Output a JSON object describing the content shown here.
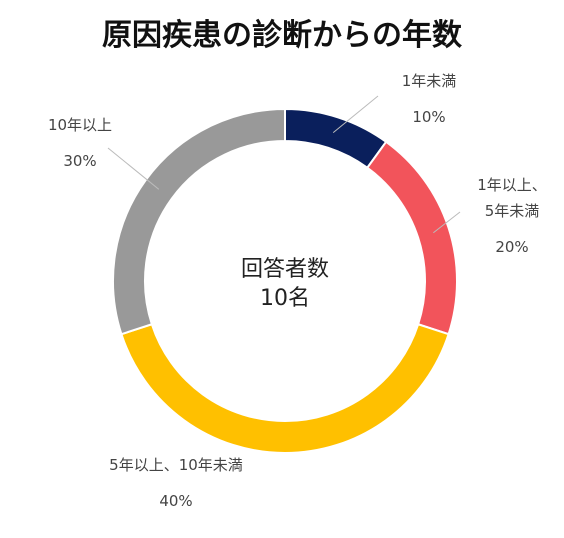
{
  "chart_data": {
    "type": "pie",
    "title": "原因疾患の診断からの年数",
    "center_label": [
      "回答者数",
      "10名"
    ],
    "categories": [
      "1年未満",
      "1年以上、5年未満",
      "5年以上、10年未満",
      "10年以上"
    ],
    "values": [
      10,
      20,
      40,
      30
    ],
    "value_labels": [
      "10%",
      "20%",
      "40%",
      "30%"
    ],
    "label_lines": [
      [
        "1年未満"
      ],
      [
        "1年以上、",
        "5年未満"
      ],
      [
        "5年以上、10年未満"
      ],
      [
        "10年以上"
      ]
    ],
    "colors": [
      "#0a1f5c",
      "#f2545b",
      "#ffc000",
      "#999999"
    ],
    "hole": true,
    "start_angle_deg": 0,
    "direction": "clockwise"
  }
}
